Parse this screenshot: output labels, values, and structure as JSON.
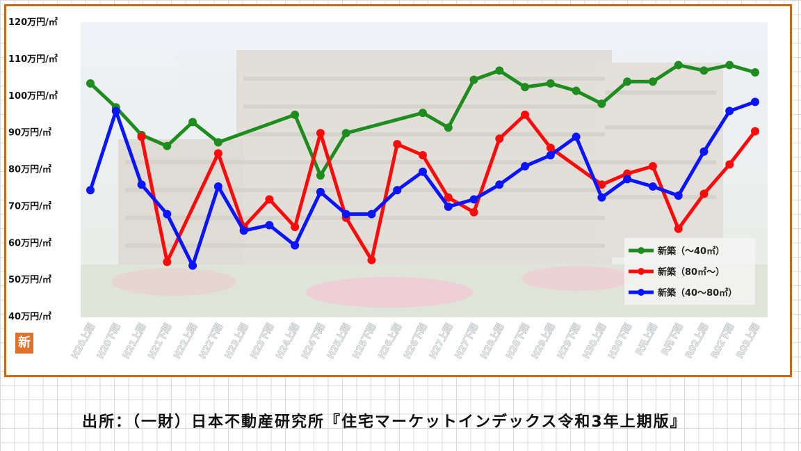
{
  "source": "出所：（一財）日本不動産研究所『住宅マーケットインデックス令和3年上期版』",
  "badge_text": "新",
  "chart_data": {
    "type": "line",
    "title": "",
    "xlabel": "",
    "ylabel": "",
    "ylim": [
      40,
      120
    ],
    "yticks": [
      {
        "value": 120,
        "label": "120万円/㎡"
      },
      {
        "value": 110,
        "label": "110万円/㎡"
      },
      {
        "value": 100,
        "label": "100万円/㎡"
      },
      {
        "value": 90,
        "label": "90万円/㎡"
      },
      {
        "value": 80,
        "label": "80万円/㎡"
      },
      {
        "value": 70,
        "label": "70万円/㎡"
      },
      {
        "value": 60,
        "label": "60万円/㎡"
      },
      {
        "value": 50,
        "label": "50万円/㎡"
      },
      {
        "value": 40,
        "label": "40万円/㎡"
      }
    ],
    "categories": [
      "H20上期",
      "H20下期",
      "H21上期",
      "H21下期",
      "H22上期",
      "H22下期",
      "H23上期",
      "H23下期",
      "H24上期",
      "H24下期",
      "H25上期",
      "H25下期",
      "H26上期",
      "H26下期",
      "H27上期",
      "H27下期",
      "H28上期",
      "H28下期",
      "H29上期",
      "H29下期",
      "H30上期",
      "H30下期",
      "R元上期",
      "R元下期",
      "R02上期",
      "R02下期",
      "R03上期"
    ],
    "legend_position": "bottom-right",
    "series": [
      {
        "name": "新築（～40㎡）",
        "color": "#1e8c1e",
        "values": [
          103,
          96.5,
          89,
          86,
          92.5,
          87,
          null,
          null,
          94.5,
          78,
          89.5,
          null,
          null,
          95,
          91,
          104,
          106.5,
          102,
          103,
          101,
          97.5,
          103.5,
          103.5,
          108,
          106.5,
          108,
          106
        ]
      },
      {
        "name": "新築（80㎡～）",
        "color": "#ff0a0a",
        "values": [
          null,
          null,
          88.5,
          54.5,
          null,
          84,
          64,
          71.5,
          64,
          89.5,
          66.5,
          55,
          86.5,
          83.5,
          72,
          68,
          88,
          94.5,
          85.5,
          null,
          75.5,
          78.5,
          80.5,
          63.5,
          73,
          81,
          90
        ]
      },
      {
        "name": "新築（40～80㎡）",
        "color": "#0a14ff",
        "values": [
          74,
          95.5,
          75.5,
          67.5,
          53.5,
          75,
          63,
          64.5,
          59,
          73.5,
          67.5,
          67.5,
          74,
          79,
          69.5,
          71.5,
          75.5,
          80.5,
          83.5,
          88.5,
          72,
          77,
          75,
          72.5,
          84.5,
          95.5,
          98
        ]
      }
    ]
  }
}
